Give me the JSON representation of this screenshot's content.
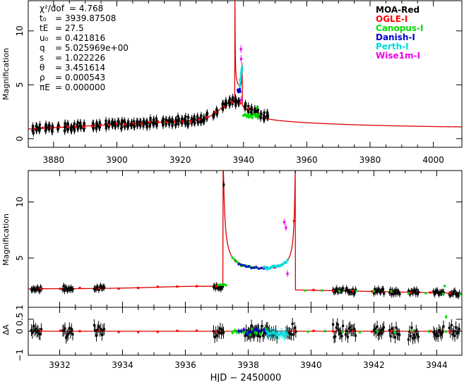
{
  "chart_data": [
    {
      "id": "top",
      "type": "line",
      "ylabel": "Magnification",
      "xlim": [
        3872,
        4009
      ],
      "ylim": [
        -0.8,
        12.8
      ],
      "xticks": [
        3880,
        3900,
        3920,
        3940,
        3960,
        3980,
        4000
      ],
      "yticks": [
        0,
        5,
        10
      ],
      "params": [
        {
          "label": "χ²/dof",
          "value": "= 4.768"
        },
        {
          "label": "t₀",
          "value": "= 3939.87508"
        },
        {
          "label": "tE",
          "value": "= 27.5"
        },
        {
          "label": "u₀",
          "value": "= 0.421816"
        },
        {
          "label": "q",
          "value": "= 5.025969e+00"
        },
        {
          "label": "s",
          "value": "= 1.022226"
        },
        {
          "label": "θ",
          "value": "= 3.451614"
        },
        {
          "label": "ρ",
          "value": "= 0.000543"
        },
        {
          "label": "πE",
          "value": "= 0.000000"
        }
      ],
      "legend": [
        {
          "name": "MOA-Red",
          "color": "#000000"
        },
        {
          "name": "OGLE-I",
          "color": "#ff0000"
        },
        {
          "name": "Canopus-I",
          "color": "#00dd00"
        },
        {
          "name": "Danish-I",
          "color": "#0000cc"
        },
        {
          "name": "Perth-I",
          "color": "#00dddd"
        },
        {
          "name": "Wise1m-I",
          "color": "#ee00ee"
        }
      ],
      "model_color": "#dd0000"
    },
    {
      "id": "middle",
      "type": "line",
      "ylabel": "Magnification",
      "xlim": [
        3931,
        3944.8
      ],
      "ylim": [
        0.6,
        12.8
      ],
      "yticks": [
        5,
        10
      ],
      "model_color": "#dd0000"
    },
    {
      "id": "bottom",
      "type": "scatter",
      "ylabel": "ΔA",
      "xlabel": "HJD − 2450000",
      "xlim": [
        3931,
        3944.8
      ],
      "ylim": [
        -1.0,
        1.0
      ],
      "yticks": [
        -1,
        0,
        0.5,
        1
      ],
      "ytick_labels": [
        "−1",
        "0",
        "0.5",
        "1"
      ],
      "xticks": [
        3932,
        3934,
        3936,
        3938,
        3940,
        3942,
        3944
      ]
    }
  ]
}
